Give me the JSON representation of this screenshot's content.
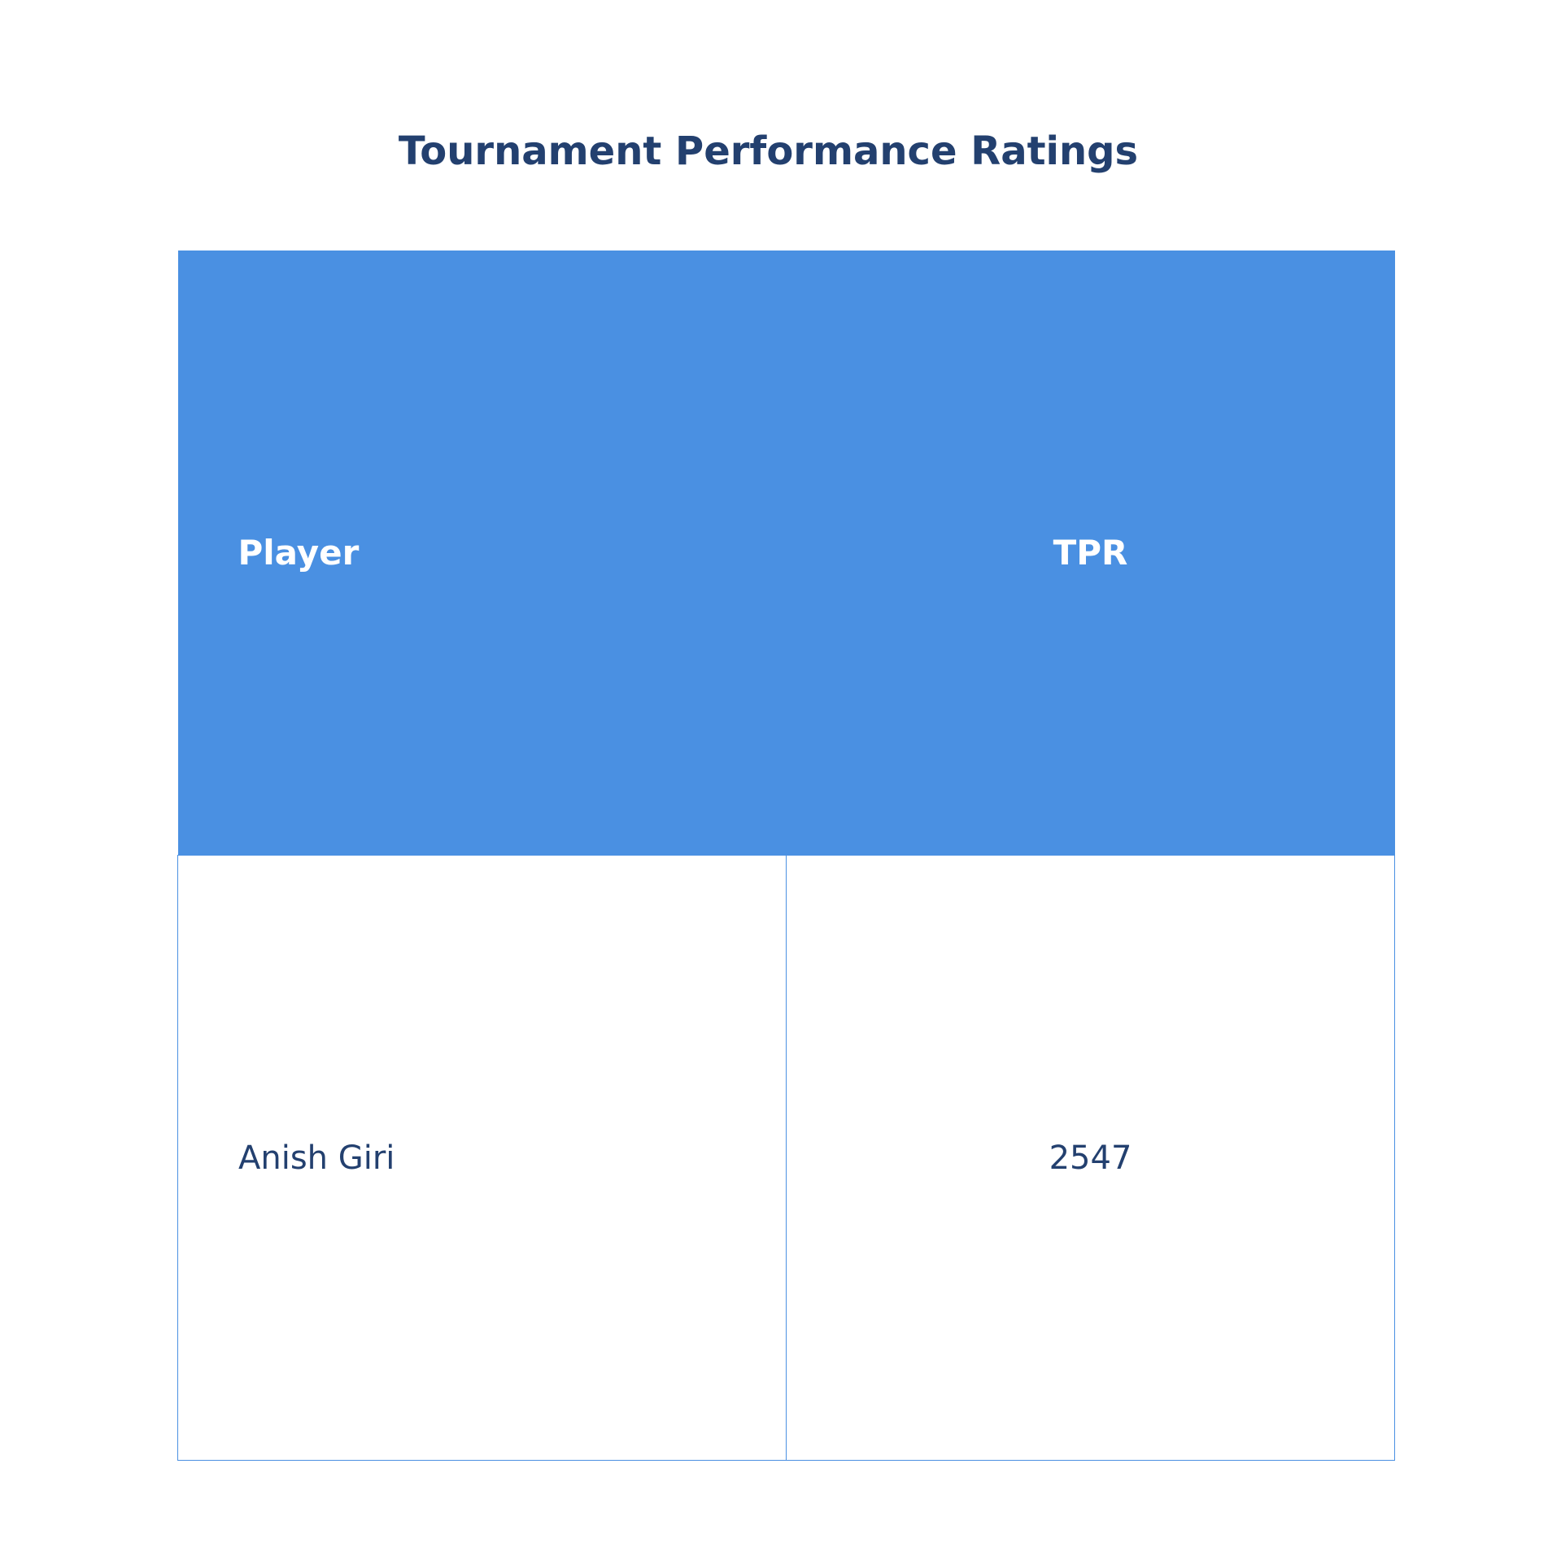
{
  "colors": {
    "header_bg": "#4a90e2",
    "header_text": "#ffffff",
    "title_text": "#23406f",
    "cell_text": "#23406f",
    "cell_border": "#4a90e2"
  },
  "chart_data": {
    "type": "table",
    "title": "Tournament Performance Ratings",
    "columns": [
      "Player",
      "TPR"
    ],
    "rows": [
      [
        "Anish Giri",
        "2547"
      ]
    ]
  }
}
